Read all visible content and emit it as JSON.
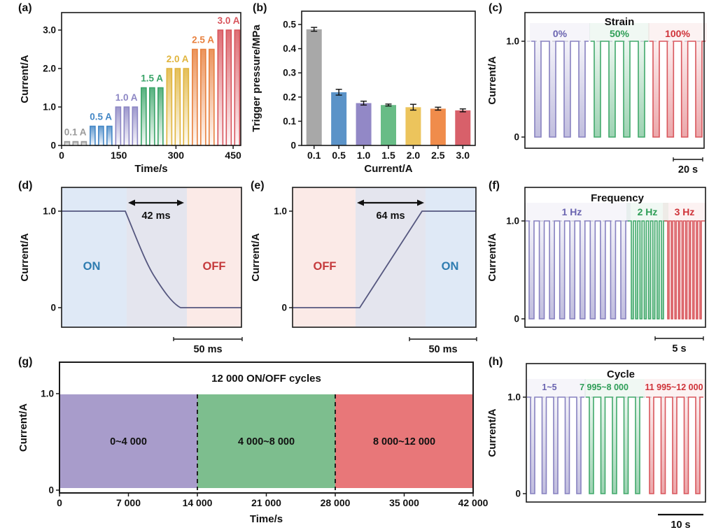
{
  "figure_bg": "#ffffff",
  "chart_data": [
    {
      "id": "a",
      "panel_label": "(a)",
      "type": "pulse-staircase",
      "xlabel": "Time/s",
      "ylabel": "Current/A",
      "xticks": [
        "0",
        "150",
        "300",
        "450"
      ],
      "xtick_values": [
        0,
        150,
        300,
        450
      ],
      "yticks": [
        "0",
        "1.0",
        "2.0",
        "3.0"
      ],
      "ytick_values": [
        0,
        1,
        2,
        3
      ],
      "xlim": [
        0,
        470
      ],
      "ylim": [
        0,
        3.45
      ],
      "pulses_per_group": 3,
      "groups": [
        {
          "label": "0.1 A",
          "amplitude": 0.1,
          "color": "#9a9a9a"
        },
        {
          "label": "0.5 A",
          "amplitude": 0.5,
          "color": "#4487c6"
        },
        {
          "label": "1.0 A",
          "amplitude": 1.0,
          "color": "#8c86c4"
        },
        {
          "label": "1.5 A",
          "amplitude": 1.5,
          "color": "#3aa468"
        },
        {
          "label": "2.0 A",
          "amplitude": 2.0,
          "color": "#e0b43c"
        },
        {
          "label": "2.5 A",
          "amplitude": 2.5,
          "color": "#e8813f"
        },
        {
          "label": "3.0 A",
          "amplitude": 3.0,
          "color": "#d8545c"
        }
      ]
    },
    {
      "id": "b",
      "panel_label": "(b)",
      "type": "bar",
      "xlabel": "Current/A",
      "ylabel": "Trigger pressure/MPa",
      "categories": [
        "0.1",
        "0.5",
        "1.0",
        "1.5",
        "2.0",
        "2.5",
        "3.0"
      ],
      "values": [
        0.48,
        0.22,
        0.175,
        0.167,
        0.158,
        0.152,
        0.145
      ],
      "errors": [
        0.008,
        0.012,
        0.008,
        0.004,
        0.012,
        0.006,
        0.006
      ],
      "colors": [
        "#a8a8a8",
        "#5b93c8",
        "#9288c6",
        "#68bc86",
        "#ecc45c",
        "#f08c4b",
        "#d8606a"
      ],
      "yticks": [
        "0",
        "0.1",
        "0.2",
        "0.3",
        "0.4",
        "0.5"
      ],
      "ytick_values": [
        0,
        0.1,
        0.2,
        0.3,
        0.4,
        0.5
      ],
      "ylim": [
        0,
        0.55
      ]
    },
    {
      "id": "c",
      "panel_label": "(c)",
      "type": "pulse-train-down",
      "title": "Strain",
      "ylabel": "Current/A",
      "yticks": [
        "0",
        "1.0"
      ],
      "groups": [
        {
          "label": "0%",
          "color": "#8781c0",
          "label_color": "#6a64b0",
          "pulses": 4
        },
        {
          "label": "50%",
          "color": "#41a96b",
          "label_color": "#2f9e57",
          "pulses": 4
        },
        {
          "label": "100%",
          "color": "#d9565c",
          "label_color": "#cf3339",
          "pulses": 4
        }
      ],
      "scalebar": "20 s"
    },
    {
      "id": "d",
      "panel_label": "(d)",
      "type": "transition",
      "ylabel": "Current/A",
      "yticks": [
        "0",
        "1.0"
      ],
      "transition_label": "42 ms",
      "left_state": {
        "label": "ON",
        "color": "#2e7cb0",
        "bg": "#dfe9f6"
      },
      "mid_bg": "#e4e5ee",
      "right_state": {
        "label": "OFF",
        "color": "#c53a3c",
        "bg": "#fbeae7"
      },
      "line_color": "#55577f",
      "scalebar": "50 ms"
    },
    {
      "id": "e",
      "panel_label": "(e)",
      "type": "transition",
      "ylabel": "Current/A",
      "yticks": [
        "0",
        "1.0"
      ],
      "transition_label": "64 ms",
      "left_state": {
        "label": "OFF",
        "color": "#c53a3c",
        "bg": "#fbeae7"
      },
      "mid_bg": "#e4e5ee",
      "right_state": {
        "label": "ON",
        "color": "#2e7cb0",
        "bg": "#dfe9f6"
      },
      "line_color": "#55577f",
      "scalebar": "50 ms"
    },
    {
      "id": "f",
      "panel_label": "(f)",
      "type": "pulse-train-down",
      "title": "Frequency",
      "ylabel": "Current/A",
      "yticks": [
        "0",
        "1.0"
      ],
      "groups": [
        {
          "label": "1 Hz",
          "color": "#8781c0",
          "label_color": "#6a64b0",
          "pulses": 10
        },
        {
          "label": "2 Hz",
          "color": "#41a96b",
          "label_color": "#2f9e57",
          "pulses": 8
        },
        {
          "label": "3 Hz",
          "color": "#d9565c",
          "label_color": "#cf3339",
          "pulses": 10
        }
      ],
      "scalebar": "5 s"
    },
    {
      "id": "g",
      "panel_label": "(g)",
      "type": "cycle-blocks",
      "title": "12 000 ON/OFF cycles",
      "xlabel": "Time/s",
      "ylabel": "Current/A",
      "yticks": [
        "0",
        "1.0"
      ],
      "xticks": [
        "0",
        "7 000",
        "14 000",
        "21 000",
        "28 000",
        "35 000",
        "42 000"
      ],
      "blocks": [
        {
          "label": "0~4 000",
          "color": "#a89ccb"
        },
        {
          "label": "4 000~8 000",
          "color": "#7dbe8e"
        },
        {
          "label": "8 000~12 000",
          "color": "#e87779"
        }
      ]
    },
    {
      "id": "h",
      "panel_label": "(h)",
      "type": "pulse-train-down",
      "title": "Cycle",
      "ylabel": "Current/A",
      "yticks": [
        "0",
        "1.0"
      ],
      "groups": [
        {
          "label": "1~5",
          "color": "#8781c0",
          "label_color": "#6a64b0",
          "pulses": 5
        },
        {
          "label": "7 995~8 000",
          "color": "#41a96b",
          "label_color": "#2f9e57",
          "pulses": 5
        },
        {
          "label": "11 995~12 000",
          "color": "#d9565c",
          "label_color": "#cf3339",
          "pulses": 5
        }
      ],
      "scalebar": "10 s"
    }
  ]
}
